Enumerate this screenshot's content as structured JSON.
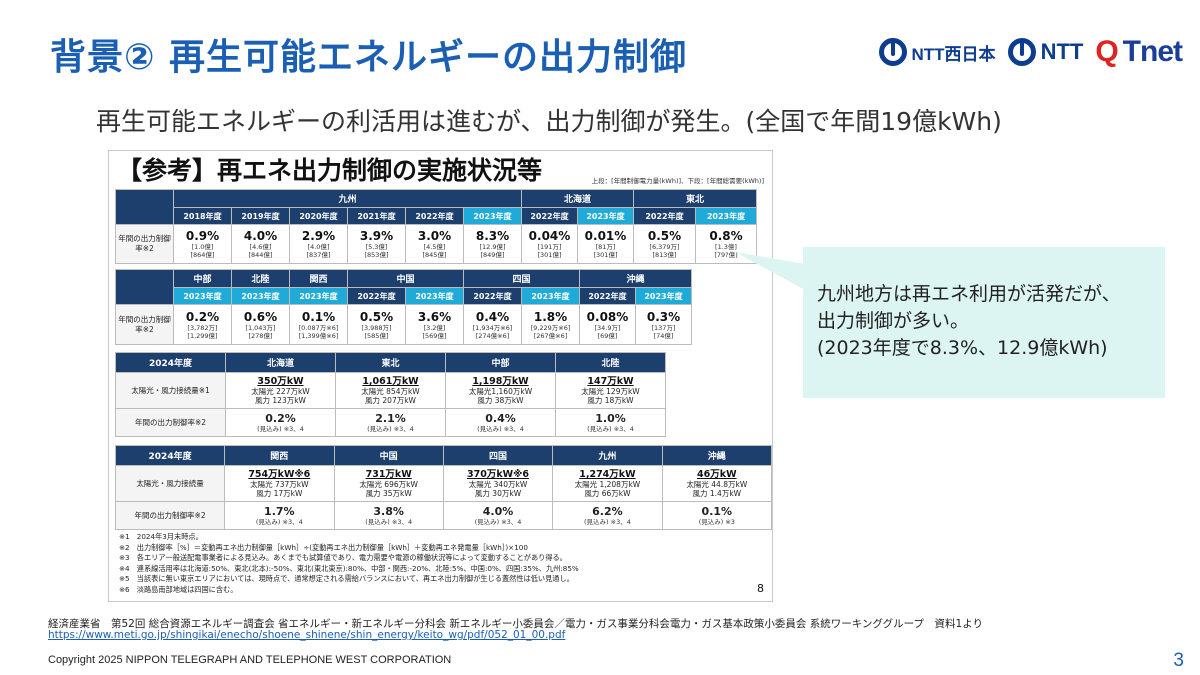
{
  "title": "背景② 再生可能エネルギーの出力制御",
  "logos": {
    "ntt_west_text": "NTT西日本",
    "ntt_text": "NTT",
    "qtnet_q": "Q",
    "qtnet_rest": "Tnet"
  },
  "subtitle": "再生可能エネルギーの利活用は進むが、出力制御が発生。(全国で年間19億kWh)",
  "panel": {
    "title": "【参考】再エネ出力制御の実施状況等",
    "note": "上段：[年間制御電力量(kWh)]、下段：[年間総需要(kWh)]",
    "page_number": "8",
    "row_label_annual": "年間の出力制御率※2",
    "table1": {
      "regions": [
        "九州",
        "北海道",
        "東北"
      ],
      "years": [
        "2018年度",
        "2019年度",
        "2020年度",
        "2021年度",
        "2022年度",
        "2023年度",
        "2022年度",
        "2023年度",
        "2022年度",
        "2023年度"
      ],
      "cells": [
        {
          "rate": "0.9%",
          "amount": "[1.0億]",
          "demand": "[864億]"
        },
        {
          "rate": "4.0%",
          "amount": "[4.6億]",
          "demand": "[844億]"
        },
        {
          "rate": "2.9%",
          "amount": "[4.0億]",
          "demand": "[837億]"
        },
        {
          "rate": "3.9%",
          "amount": "[5.3億]",
          "demand": "[853億]"
        },
        {
          "rate": "3.0%",
          "amount": "[4.5億]",
          "demand": "[845億]"
        },
        {
          "rate": "8.3%",
          "amount": "[12.9億]",
          "demand": "[849億]"
        },
        {
          "rate": "0.04%",
          "amount": "[191万]",
          "demand": "[301億]"
        },
        {
          "rate": "0.01%",
          "amount": "[81万]",
          "demand": "[301億]"
        },
        {
          "rate": "0.5%",
          "amount": "[6,379万]",
          "demand": "[813億]"
        },
        {
          "rate": "0.8%",
          "amount": "[1.3億]",
          "demand": "[79?億]"
        }
      ]
    },
    "table2": {
      "regions": [
        "中部",
        "北陸",
        "関西",
        "中国",
        "四国",
        "沖縄"
      ],
      "years": [
        "2023年度",
        "2023年度",
        "2023年度",
        "2022年度",
        "2023年度",
        "2022年度",
        "2023年度",
        "2022年度",
        "2023年度"
      ],
      "cells": [
        {
          "rate": "0.2%",
          "amount": "[3,782万]",
          "demand": "[1,299億]"
        },
        {
          "rate": "0.6%",
          "amount": "[1,043万]",
          "demand": "[278億]"
        },
        {
          "rate": "0.1%",
          "amount": "[0.087万※6]",
          "demand": "[1,399億※6]"
        },
        {
          "rate": "0.5%",
          "amount": "[3,988万]",
          "demand": "[585億]"
        },
        {
          "rate": "3.6%",
          "amount": "[3.2億]",
          "demand": "[569億]"
        },
        {
          "rate": "0.4%",
          "amount": "[1,934万※6]",
          "demand": "[274億※6]"
        },
        {
          "rate": "1.8%",
          "amount": "[9,229万※6]",
          "demand": "[267億※6]"
        },
        {
          "rate": "0.08%",
          "amount": "[34.9万]",
          "demand": "[69億]"
        },
        {
          "rate": "0.3%",
          "amount": "[137万]",
          "demand": "[74億]"
        }
      ]
    },
    "table3": {
      "year_label": "2024年度",
      "regions": [
        "北海道",
        "東北",
        "中部",
        "北陸"
      ],
      "row_label_capacity": "太陽光・風力接続量※1",
      "row_label_rate": "年間の出力制御率※2",
      "capacity": [
        {
          "total": "350万kW",
          "solar": "太陽光 227万kW",
          "wind": "風力 123万kW"
        },
        {
          "total": "1,061万kW",
          "solar": "太陽光 854万kW",
          "wind": "風力 207万kW"
        },
        {
          "total": "1,198万kW",
          "solar": "太陽光1,160万kW",
          "wind": "風力 38万kW"
        },
        {
          "total": "147万kW",
          "solar": "太陽光 129万kW",
          "wind": "風力 18万kW"
        }
      ],
      "rates": [
        {
          "rate": "0.2%",
          "note": "(見込み) ※3、4"
        },
        {
          "rate": "2.1%",
          "note": "(見込み) ※3、4"
        },
        {
          "rate": "0.4%",
          "note": "(見込み) ※3、4"
        },
        {
          "rate": "1.0%",
          "note": "(見込み) ※3、4"
        }
      ]
    },
    "table4": {
      "year_label": "2024年度",
      "regions": [
        "関西",
        "中国",
        "四国",
        "九州",
        "沖縄"
      ],
      "row_label_capacity": "太陽光・風力接続量",
      "row_label_rate": "年間の出力制御率※2",
      "capacity": [
        {
          "total": "754万kW※6",
          "solar": "太陽光 737万kW",
          "wind": "風力 17万kW"
        },
        {
          "total": "731万kW",
          "solar": "太陽光 696万kW",
          "wind": "風力 35万kW"
        },
        {
          "total": "370万kW※6",
          "solar": "太陽光 340万kW",
          "wind": "風力 30万kW"
        },
        {
          "total": "1,274万kW",
          "solar": "太陽光 1,208万kW",
          "wind": "風力 66万kW"
        },
        {
          "total": "46万kW",
          "solar": "太陽光 44.8万kW",
          "wind": "風力 1.4万kW"
        }
      ],
      "rates": [
        {
          "rate": "1.7%",
          "note": "(見込み) ※3、4"
        },
        {
          "rate": "3.8%",
          "note": "(見込み) ※3、4"
        },
        {
          "rate": "4.0%",
          "note": "(見込み) ※3、4"
        },
        {
          "rate": "6.2%",
          "note": "(見込み) ※3、4"
        },
        {
          "rate": "0.1%",
          "note": "(見込み) ※3"
        }
      ]
    },
    "notes": [
      "※1　2024年3月末時点。",
      "※2　出力制御率［%］＝変動再エネ出力制御量［kWh］÷(変動再エネ出力制御量［kWh］＋変動再エネ発電量［kWh］)×100",
      "※3　各エリア一般送配電事業者による見込み。あくまでも試算値であり、電力需要や電源の稼働状況等によって変動することがあり得る。",
      "※4　連系線活用率は北海道:50%、東北(北本):-50%、東北(東北東京):80%、中部・関西:-20%、北陸:5%、中国:0%、四国:35%、九州:85%",
      "※5　当該表に無い東京エリアにおいては、現時点で、通常想定される需給バランスにおいて、再エネ出力制御が生じる蓋然性は低い見通し。",
      "※6　淡路島南部地域は四国に含む。"
    ]
  },
  "callout": {
    "line1": "九州地方は再エネ利用が活発だが、",
    "line2": "出力制御が多い。",
    "line3": "(2023年度で8.3%、12.9億kWh)"
  },
  "source": "経済産業省　第52回 総合資源エネルギー調査会 省エネルギー・新エネルギー分科会 新エネルギー小委員会／電力・ガス事業分科会電力・ガス基本政策小委員会 系統ワーキンググループ　資料1より",
  "source_url": "https://www.meti.go.jp/shingikai/enecho/shoene_shinene/shin_energy/keito_wg/pdf/052_01_00.pdf",
  "copyright": "Copyright 2025 NIPPON TELEGRAPH AND TELEPHONE WEST CORPORATION",
  "slide_number": "3"
}
